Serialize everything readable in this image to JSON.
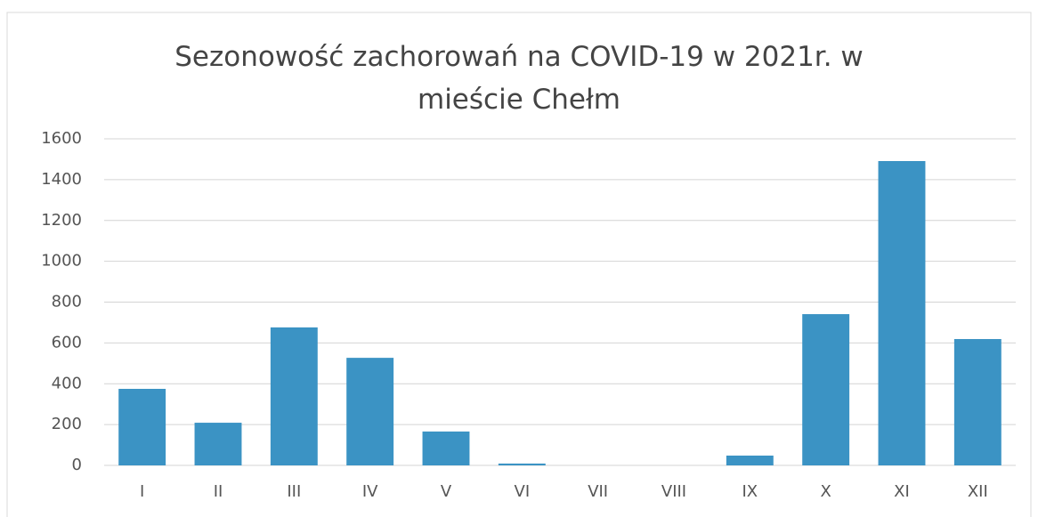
{
  "chart_data": {
    "type": "bar",
    "title": "Sezonowość zachorowań na COVID-19 w 2021r. w mieście Chełm",
    "categories": [
      "I",
      "II",
      "III",
      "IV",
      "V",
      "VI",
      "VII",
      "VIII",
      "IX",
      "X",
      "XI",
      "XII"
    ],
    "values": [
      375,
      209,
      676,
      527,
      166,
      9,
      0,
      0,
      48,
      741,
      1491,
      619
    ],
    "color": "#3b93c4",
    "ylim": [
      0,
      1600
    ],
    "yticks": [
      0,
      200,
      400,
      600,
      800,
      1000,
      1200,
      1400,
      1600
    ],
    "grid": true
  }
}
